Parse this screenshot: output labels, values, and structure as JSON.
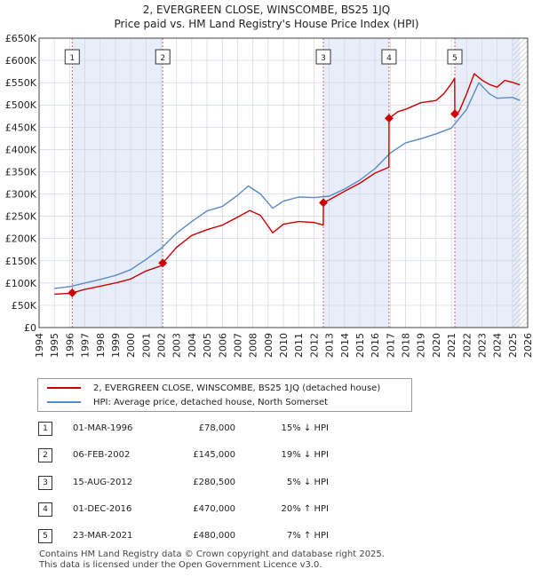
{
  "title_line1": "2, EVERGREEN CLOSE, WINSCOMBE, BS25 1JQ",
  "title_line2": "Price paid vs. HM Land Registry's House Price Index (HPI)",
  "legend": {
    "property_label": "2, EVERGREEN CLOSE, WINSCOMBE, BS25 1JQ (detached house)",
    "hpi_label": "HPI: Average price, detached house, North Somerset"
  },
  "colors": {
    "property": "#cc0000",
    "hpi": "#5b8ac6",
    "shade": "#e8eef9",
    "grid": "#cfd6e0",
    "marker_line": "#e06060"
  },
  "sales": [
    {
      "num": "1",
      "date": "01-MAR-1996",
      "price": "£78,000",
      "hpi": "15% ↓ HPI"
    },
    {
      "num": "2",
      "date": "06-FEB-2002",
      "price": "£145,000",
      "hpi": "19% ↓ HPI"
    },
    {
      "num": "3",
      "date": "15-AUG-2012",
      "price": "£280,500",
      "hpi": "5% ↓ HPI"
    },
    {
      "num": "4",
      "date": "01-DEC-2016",
      "price": "£470,000",
      "hpi": "20% ↑ HPI"
    },
    {
      "num": "5",
      "date": "23-MAR-2021",
      "price": "£480,000",
      "hpi": "7% ↑ HPI"
    }
  ],
  "footer_line1": "Contains HM Land Registry data © Crown copyright and database right 2025.",
  "footer_line2": "This data is licensed under the Open Government Licence v3.0.",
  "chart_data": {
    "type": "line",
    "title": "2, EVERGREEN CLOSE, WINSCOMBE, BS25 1JQ",
    "subtitle": "Price paid vs. HM Land Registry's House Price Index (HPI)",
    "xlim": [
      1994,
      2026
    ],
    "ylim": [
      0,
      650000
    ],
    "x_ticks": [
      1994,
      1995,
      1996,
      1997,
      1998,
      1999,
      2000,
      2001,
      2002,
      2003,
      2004,
      2005,
      2006,
      2007,
      2008,
      2009,
      2010,
      2011,
      2012,
      2013,
      2014,
      2015,
      2016,
      2017,
      2018,
      2019,
      2020,
      2021,
      2022,
      2023,
      2024,
      2025,
      2026
    ],
    "y_ticks": [
      0,
      50000,
      100000,
      150000,
      200000,
      250000,
      300000,
      350000,
      400000,
      450000,
      500000,
      550000,
      600000,
      650000
    ],
    "y_tick_labels": [
      "£0",
      "£50K",
      "£100K",
      "£150K",
      "£200K",
      "£250K",
      "£300K",
      "£350K",
      "£400K",
      "£450K",
      "£500K",
      "£550K",
      "£600K",
      "£650K"
    ],
    "data_start": 1995,
    "data_end": 2025.5,
    "hatched_from": 2025.0,
    "shaded_periods": [
      [
        1996.17,
        2002.1
      ],
      [
        2012.62,
        2016.92
      ],
      [
        2021.23,
        2025.5
      ]
    ],
    "sale_points": [
      {
        "label": "1",
        "x": 1996.17,
        "y": 78000
      },
      {
        "label": "2",
        "x": 2002.1,
        "y": 145000
      },
      {
        "label": "3",
        "x": 2012.62,
        "y": 280500
      },
      {
        "label": "4",
        "x": 2016.92,
        "y": 470000
      },
      {
        "label": "5",
        "x": 2021.23,
        "y": 480000
      }
    ],
    "series": [
      {
        "name": "2, EVERGREEN CLOSE, WINSCOMBE, BS25 1JQ (detached house)",
        "x": [
          1995.0,
          1995.5,
          1996.0,
          1996.17,
          1997,
          1998,
          1999,
          2000,
          2001,
          2002.09,
          2002.1,
          2003,
          2004,
          2005,
          2006,
          2007,
          2007.8,
          2008.5,
          2009.3,
          2010,
          2011,
          2012,
          2012.61,
          2012.62,
          2013,
          2014,
          2015,
          2016,
          2016.91,
          2016.92,
          2017.5,
          2018,
          2019,
          2020,
          2020.5,
          2021.0,
          2021.22,
          2021.23,
          2021.5,
          2022,
          2022.5,
          2023,
          2023.5,
          2024,
          2024.5,
          2025,
          2025.5
        ],
        "values": [
          75000,
          76000,
          77000,
          78000,
          86000,
          93000,
          100000,
          109000,
          127000,
          140000,
          145000,
          180000,
          207000,
          220000,
          230000,
          248000,
          263000,
          252000,
          213000,
          232000,
          238000,
          236000,
          230000,
          280500,
          287000,
          306000,
          324000,
          347000,
          360000,
          470000,
          485000,
          490000,
          505000,
          510000,
          525000,
          548000,
          560000,
          480000,
          485000,
          525000,
          570000,
          556000,
          546000,
          540000,
          555000,
          551000,
          545000
        ]
      },
      {
        "name": "HPI: Average price, detached house, North Somerset",
        "x": [
          1995,
          1996,
          1997,
          1998,
          1999,
          2000,
          2001,
          2002,
          2003,
          2004,
          2005,
          2006,
          2007,
          2007.7,
          2008.5,
          2009.3,
          2010,
          2011,
          2012,
          2013,
          2014,
          2015,
          2016,
          2017,
          2018,
          2019,
          2020,
          2021,
          2022,
          2022.8,
          2023.5,
          2024,
          2025,
          2025.5
        ],
        "values": [
          88000,
          92000,
          100000,
          108000,
          117000,
          130000,
          153000,
          178000,
          212000,
          238000,
          262000,
          272000,
          297000,
          318000,
          300000,
          268000,
          284000,
          293000,
          292000,
          295000,
          311000,
          331000,
          357000,
          392000,
          415000,
          424000,
          435000,
          448000,
          490000,
          550000,
          525000,
          515000,
          517000,
          510000
        ]
      }
    ]
  }
}
